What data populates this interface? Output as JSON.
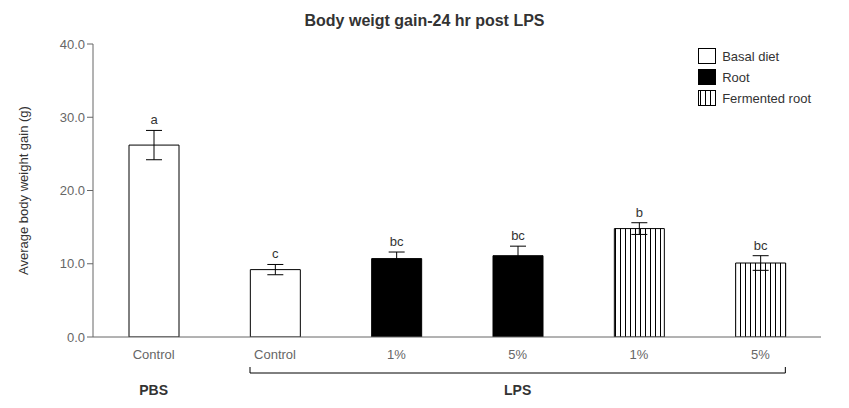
{
  "chart_data": {
    "type": "bar",
    "title": "Body weigt gain-24 hr post LPS",
    "ylabel": "Average body weight gain (g)",
    "categories": [
      "Control",
      "Control",
      "1%",
      "5%",
      "1%",
      "5%"
    ],
    "groups": [
      "PBS",
      "LPS",
      "LPS",
      "LPS",
      "LPS",
      "LPS"
    ],
    "series": [
      {
        "name": "Basal diet",
        "color": "white",
        "values": [
          26.2,
          9.2,
          null,
          null,
          null,
          null
        ],
        "errors": [
          2.0,
          0.7,
          null,
          null,
          null,
          null
        ],
        "annotations": [
          "a",
          "c",
          null,
          null,
          null,
          null
        ]
      },
      {
        "name": "Root",
        "color": "black",
        "values": [
          null,
          null,
          10.7,
          11.1,
          null,
          null
        ],
        "errors": [
          null,
          null,
          0.9,
          1.3,
          null,
          null
        ],
        "annotations": [
          null,
          null,
          "bc",
          "bc",
          null,
          null
        ]
      },
      {
        "name": "Fermented root",
        "color": "white",
        "values": [
          null,
          null,
          null,
          null,
          14.8,
          10.1
        ],
        "errors": [
          null,
          null,
          null,
          null,
          0.8,
          1.0
        ],
        "annotations": [
          null,
          null,
          null,
          null,
          "b",
          "bc"
        ]
      }
    ],
    "ylim": [
      0,
      40.0
    ],
    "yticks": [
      {
        "value": 0.0,
        "label": "0.0"
      },
      {
        "value": 10.0,
        "label": "10.0"
      },
      {
        "value": 20.0,
        "label": "20.0"
      },
      {
        "value": 30.0,
        "label": "30.0"
      },
      {
        "value": 40.0,
        "label": "40.0"
      }
    ],
    "grid": false,
    "legend": "upper right"
  }
}
